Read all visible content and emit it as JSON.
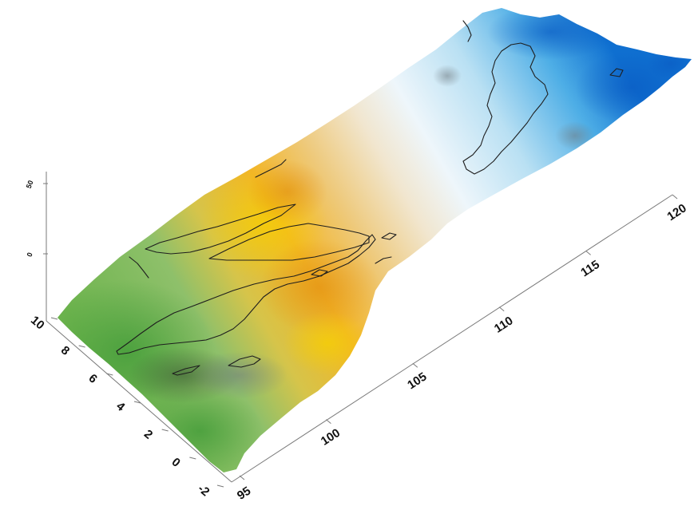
{
  "chart_data": {
    "type": "surface",
    "view": "3d-perspective",
    "axes": {
      "x": {
        "ticks": [
          95,
          100,
          105,
          110,
          115,
          120
        ],
        "range": [
          95,
          120
        ]
      },
      "y": {
        "ticks": [
          -2,
          0,
          2,
          4,
          6,
          8,
          10
        ],
        "range": [
          -2,
          10
        ]
      },
      "z": {
        "ticks": [
          "0",
          "50"
        ],
        "range": [
          0,
          50
        ]
      }
    },
    "colormap": [
      "#6eb44e",
      "#e9c22a",
      "#f0e7c4",
      "#eaf5fb",
      "#1f86d8"
    ],
    "overlay": "coastlines",
    "grid": false
  }
}
